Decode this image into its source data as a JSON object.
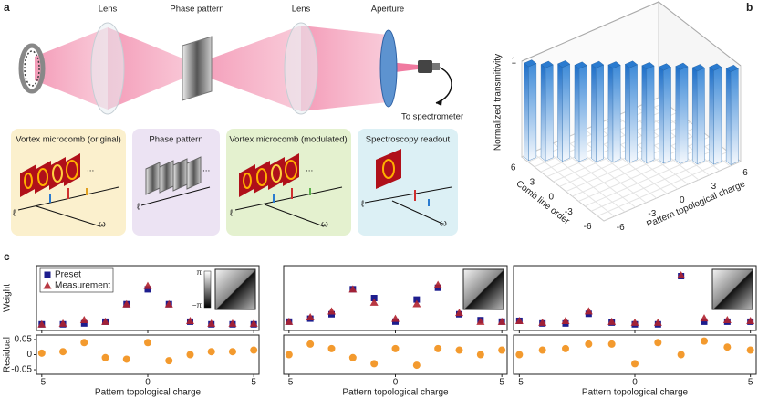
{
  "panel_labels": [
    "a",
    "b",
    "c"
  ],
  "diagram": {
    "top_labels": [
      "Lens",
      "Phase pattern",
      "Lens",
      "Aperture"
    ],
    "output_label": "To spectrometer",
    "boxes": [
      "Vortex microcomb (original)",
      "Phase pattern",
      "Vortex microcomb (modulated)",
      "Spectroscopy readout"
    ],
    "symbols": {
      "ell": "ℓ",
      "omega": "ω",
      "dots": "..."
    }
  },
  "chart_data": [
    {
      "type": "bar3d",
      "zlabel": "Normalized transmitivity",
      "xlabel": "Comb line order",
      "ylabel": "Pattern topological charge",
      "categories": [
        -6,
        -5,
        -4,
        -3,
        -2,
        -1,
        0,
        1,
        2,
        3,
        4,
        5,
        6
      ],
      "values": [
        0.98,
        0.97,
        0.98,
        0.97,
        0.98,
        0.98,
        0.99,
        0.98,
        0.97,
        0.98,
        0.97,
        0.98,
        0.97
      ],
      "color": "#2a7bd0",
      "xlim": [
        -6,
        6
      ],
      "xticks": [
        6,
        3,
        0,
        -3,
        -6
      ],
      "ylim": [
        -6,
        6
      ],
      "yticks": [
        -6,
        -3,
        0,
        3,
        6
      ],
      "zlim": [
        0,
        1
      ],
      "zticks": [
        1
      ]
    },
    {
      "type": "scatter",
      "ylabel": "Weight",
      "xlabel": "Pattern topological charge",
      "x": [
        -5,
        -4,
        -3,
        -2,
        -1,
        0,
        1,
        2,
        3,
        4,
        5
      ],
      "series": [
        {
          "name": "Preset",
          "color": "#1d1d8e",
          "marker": "square",
          "values": [
            0.01,
            0.01,
            0.02,
            0.04,
            0.24,
            0.41,
            0.24,
            0.04,
            0.01,
            0.01,
            0.01
          ]
        },
        {
          "name": "Measurement",
          "color": "#b0222e",
          "marker": "triangle",
          "values": [
            0.01,
            0.02,
            0.06,
            0.04,
            0.24,
            0.45,
            0.24,
            0.05,
            0.02,
            0.02,
            0.02
          ]
        }
      ],
      "legend": "upper left",
      "colorbar": [
        "π",
        "−π"
      ],
      "xlim": [
        -5.25,
        5.25
      ],
      "xticks": [
        -5,
        0,
        5
      ],
      "ylim": [
        -0.06,
        0.68
      ],
      "residual": {
        "ylabel": "Residual",
        "color": "#f39a2e",
        "values": [
          0.005,
          0.01,
          0.04,
          -0.01,
          -0.015,
          0.04,
          -0.02,
          0.0,
          0.01,
          0.01,
          0.015
        ],
        "ylim": [
          -0.065,
          0.065
        ],
        "yticks": [
          {
            "value": 0.05,
            "label": "0.05"
          },
          0,
          {
            "value": -0.05,
            "label": "-0.05"
          }
        ]
      }
    },
    {
      "type": "scatter",
      "xlabel": "Pattern topological charge",
      "x": [
        -5,
        -4,
        -3,
        -2,
        -1,
        0,
        1,
        2,
        3,
        4,
        5
      ],
      "series": [
        {
          "color": "#1d1d8e",
          "marker": "square",
          "values": [
            0.02,
            0.04,
            0.07,
            0.24,
            0.18,
            0.02,
            0.17,
            0.25,
            0.07,
            0.03,
            0.02
          ]
        },
        {
          "color": "#b0222e",
          "marker": "triangle",
          "values": [
            0.02,
            0.05,
            0.09,
            0.24,
            0.15,
            0.04,
            0.14,
            0.27,
            0.08,
            0.02,
            0.02
          ]
        }
      ],
      "xlim": [
        -5.25,
        5.25
      ],
      "xticks": [
        -5,
        0,
        5
      ],
      "ylim": [
        -0.04,
        0.4
      ],
      "residual": {
        "color": "#f39a2e",
        "values": [
          0.0,
          0.035,
          0.02,
          -0.01,
          -0.03,
          0.02,
          -0.035,
          0.02,
          0.015,
          0.0,
          0.015
        ],
        "ylim": [
          -0.065,
          0.065
        ]
      }
    },
    {
      "type": "scatter",
      "xlabel": "Pattern topological charge",
      "x": [
        -5,
        -4,
        -3,
        -2,
        -1,
        0,
        1,
        2,
        3,
        4,
        5
      ],
      "series": [
        {
          "color": "#1d1d8e",
          "marker": "square",
          "values": [
            0.05,
            0.02,
            0.02,
            0.13,
            0.03,
            0.01,
            0.01,
            0.56,
            0.04,
            0.04,
            0.04
          ]
        },
        {
          "color": "#b0222e",
          "marker": "triangle",
          "values": [
            0.05,
            0.03,
            0.05,
            0.16,
            0.04,
            0.03,
            0.03,
            0.57,
            0.08,
            0.06,
            0.05
          ]
        }
      ],
      "xlim": [
        -5.25,
        5.25
      ],
      "xticks": [
        -5,
        0,
        5
      ],
      "ylim": [
        -0.06,
        0.68
      ],
      "residual": {
        "color": "#f39a2e",
        "values": [
          0.0,
          0.015,
          0.02,
          0.035,
          0.035,
          -0.03,
          0.04,
          0.0,
          0.045,
          0.025,
          0.015
        ],
        "ylim": [
          -0.065,
          0.065
        ]
      }
    }
  ]
}
